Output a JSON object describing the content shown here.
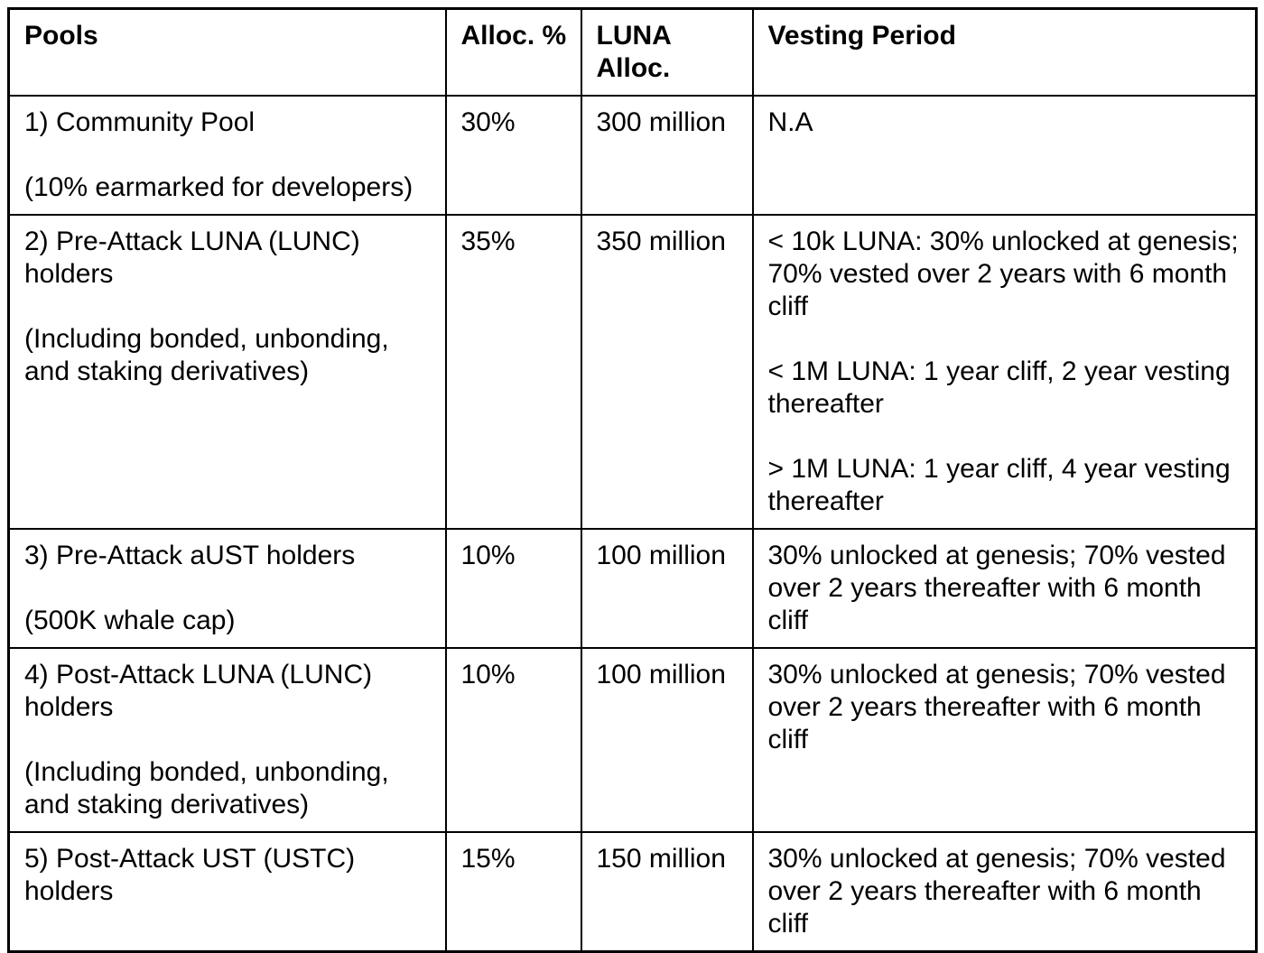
{
  "page": {
    "background_color": "#ffffff",
    "border_color": "#000000",
    "text_color": "#000000"
  },
  "table": {
    "columns": [
      {
        "key": "pool",
        "label": "Pools"
      },
      {
        "key": "alloc_pct",
        "label": "Alloc. %"
      },
      {
        "key": "luna_alloc",
        "label": "LUNA\nAlloc."
      },
      {
        "key": "vesting",
        "label": "Vesting Period"
      }
    ],
    "rows": [
      {
        "pool": "1) Community Pool\n\n(10% earmarked for developers)",
        "alloc_pct": "30%",
        "luna_alloc": "300 million",
        "vesting": "N.A"
      },
      {
        "pool": "2) Pre-Attack LUNA (LUNC)\nholders\n\n(Including bonded, unbonding,\nand staking derivatives)",
        "alloc_pct": "35%",
        "luna_alloc": "350 million",
        "vesting": "< 10k LUNA: 30% unlocked at genesis;\n70% vested over 2 years with 6 month\ncliff\n\n< 1M LUNA: 1 year cliff, 2 year vesting\nthereafter\n\n> 1M LUNA: 1 year cliff, 4 year vesting\nthereafter"
      },
      {
        "pool": "3) Pre-Attack aUST holders\n\n(500K whale cap)",
        "alloc_pct": "10%",
        "luna_alloc": "100 million",
        "vesting": "30% unlocked at genesis; 70% vested\nover 2 years thereafter with 6 month\ncliff"
      },
      {
        "pool": "4) Post-Attack LUNA (LUNC)\nholders\n\n(Including bonded, unbonding,\nand staking derivatives)",
        "alloc_pct": "10%",
        "luna_alloc": "100 million",
        "vesting": "30% unlocked at genesis; 70% vested\nover 2 years thereafter with 6 month\ncliff"
      },
      {
        "pool": "5) Post-Attack UST (USTC)\nholders",
        "alloc_pct": "15%",
        "luna_alloc": "150 million",
        "vesting": "30% unlocked at genesis; 70% vested\nover 2 years thereafter with 6 month\ncliff"
      }
    ]
  }
}
